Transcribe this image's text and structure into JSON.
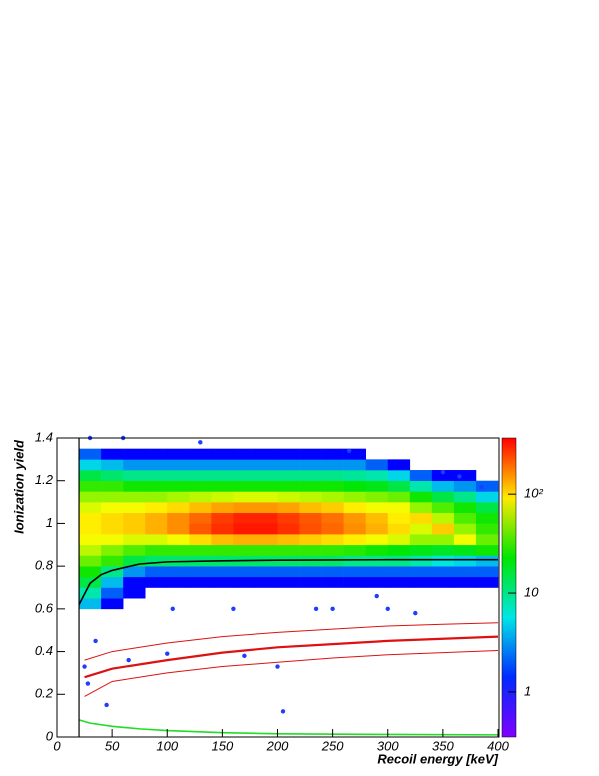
{
  "chart_data": {
    "type": "heatmap",
    "x_label": "Recoil energy [keV]",
    "y_label": "Ionization yield",
    "xlim": [
      0,
      400
    ],
    "ylim": [
      0,
      1.4
    ],
    "xticks": [
      0,
      50,
      100,
      150,
      200,
      250,
      300,
      350,
      400
    ],
    "yticks": [
      0,
      0.2,
      0.4,
      0.6,
      0.8,
      1,
      1.2,
      1.4
    ],
    "xbins": [
      20,
      40,
      60,
      80,
      100,
      120,
      140,
      160,
      180,
      200,
      220,
      240,
      260,
      280,
      300,
      320,
      340,
      360,
      380,
      400
    ],
    "ybins": [
      0.6,
      0.65,
      0.7,
      0.75,
      0.8,
      0.85,
      0.9,
      0.95,
      1.0,
      1.05,
      1.1,
      1.15,
      1.2,
      1.25,
      1.3,
      1.35
    ],
    "z": [
      [
        4,
        1,
        0,
        0,
        0,
        0,
        0,
        0,
        0,
        0,
        0,
        0,
        0,
        0,
        0,
        0,
        0,
        0,
        0
      ],
      [
        8,
        2,
        1,
        0,
        0,
        0,
        0,
        0,
        0,
        0,
        0,
        0,
        0,
        0,
        0,
        0,
        0,
        0,
        0
      ],
      [
        15,
        4,
        1,
        1,
        1,
        1,
        1,
        1,
        1,
        1,
        1,
        1,
        1,
        1,
        1,
        1,
        1,
        1,
        1
      ],
      [
        25,
        10,
        3,
        2,
        2,
        2,
        2,
        2,
        2,
        2,
        2,
        2,
        2,
        2,
        2,
        2,
        2,
        2,
        2
      ],
      [
        40,
        30,
        15,
        12,
        12,
        12,
        12,
        12,
        12,
        12,
        12,
        12,
        10,
        10,
        10,
        8,
        6,
        5,
        4
      ],
      [
        60,
        45,
        35,
        30,
        30,
        30,
        30,
        30,
        30,
        30,
        30,
        30,
        28,
        25,
        22,
        20,
        18,
        20,
        25
      ],
      [
        80,
        80,
        70,
        70,
        80,
        100,
        120,
        130,
        130,
        120,
        110,
        100,
        90,
        80,
        70,
        50,
        50,
        80,
        40
      ],
      [
        90,
        100,
        110,
        130,
        160,
        220,
        280,
        320,
        320,
        280,
        230,
        200,
        160,
        130,
        100,
        70,
        110,
        50,
        30
      ],
      [
        90,
        100,
        110,
        130,
        160,
        200,
        260,
        300,
        300,
        260,
        220,
        190,
        150,
        120,
        90,
        100,
        60,
        35,
        25
      ],
      [
        70,
        80,
        80,
        90,
        100,
        120,
        140,
        150,
        150,
        140,
        120,
        110,
        90,
        80,
        80,
        50,
        35,
        25,
        15
      ],
      [
        50,
        50,
        50,
        50,
        55,
        60,
        65,
        70,
        70,
        65,
        60,
        55,
        50,
        45,
        40,
        25,
        15,
        10,
        5
      ],
      [
        30,
        30,
        25,
        25,
        25,
        25,
        25,
        25,
        25,
        25,
        25,
        25,
        22,
        20,
        15,
        8,
        4,
        3,
        2
      ],
      [
        15,
        12,
        10,
        10,
        10,
        10,
        10,
        10,
        10,
        10,
        10,
        10,
        9,
        8,
        5,
        2,
        1,
        1,
        0
      ],
      [
        5,
        4,
        3,
        3,
        3,
        3,
        3,
        3,
        3,
        3,
        3,
        3,
        3,
        2,
        1,
        0,
        0,
        0,
        0
      ],
      [
        2,
        1,
        1,
        1,
        1,
        1,
        1,
        1,
        1,
        1,
        1,
        1,
        1,
        0,
        0,
        0,
        0,
        0,
        0
      ]
    ],
    "log_z": true,
    "zlim": [
      0.35,
      370
    ],
    "zticks": [
      1,
      10,
      {
        "value": 100,
        "label": "10²"
      }
    ],
    "points": {
      "color": "#1f3dff",
      "x": [
        45,
        65,
        100,
        105,
        160,
        170,
        200,
        205,
        235,
        250,
        290,
        300,
        325,
        30,
        60,
        130,
        265,
        350,
        365,
        385,
        25,
        28,
        35
      ],
      "y": [
        0.15,
        0.36,
        0.39,
        0.6,
        0.6,
        0.38,
        0.33,
        0.12,
        0.6,
        0.6,
        0.66,
        0.6,
        0.58,
        1.4,
        1.4,
        1.38,
        1.34,
        1.24,
        1.22,
        1.17,
        0.33,
        0.25,
        0.45
      ]
    },
    "curves": [
      {
        "color": "#dd1111",
        "line_width": 2.2,
        "x": [
          25,
          50,
          100,
          150,
          200,
          250,
          300,
          350,
          400
        ],
        "y": [
          0.28,
          0.32,
          0.36,
          0.395,
          0.42,
          0.435,
          0.45,
          0.46,
          0.47
        ]
      },
      {
        "color": "#dd1111",
        "line_width": 1,
        "x": [
          25,
          50,
          100,
          150,
          200,
          250,
          300,
          350,
          400
        ],
        "y": [
          0.36,
          0.4,
          0.44,
          0.47,
          0.49,
          0.505,
          0.52,
          0.528,
          0.535
        ]
      },
      {
        "color": "#dd1111",
        "line_width": 1,
        "x": [
          25,
          50,
          100,
          150,
          200,
          250,
          300,
          350,
          400
        ],
        "y": [
          0.19,
          0.26,
          0.3,
          0.33,
          0.35,
          0.37,
          0.385,
          0.395,
          0.405
        ]
      },
      {
        "color": "#000000",
        "line_width": 1.6,
        "x": [
          20,
          30,
          40,
          50,
          75,
          100,
          150,
          200,
          300,
          400
        ],
        "y": [
          0.62,
          0.72,
          0.76,
          0.78,
          0.81,
          0.82,
          0.825,
          0.828,
          0.83,
          0.83
        ]
      },
      {
        "color": "#22dd22",
        "line_width": 1.6,
        "x": [
          20,
          30,
          50,
          75,
          100,
          150,
          200,
          300,
          400
        ],
        "y": [
          0.08,
          0.065,
          0.05,
          0.038,
          0.03,
          0.02,
          0.015,
          0.012,
          0.01
        ]
      },
      {
        "color": "#000000",
        "line_width": 1.2,
        "x": [
          20,
          20
        ],
        "y": [
          0,
          1.4
        ]
      }
    ]
  }
}
